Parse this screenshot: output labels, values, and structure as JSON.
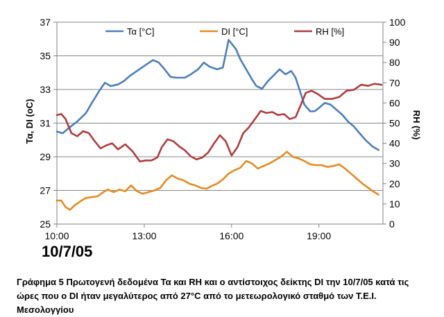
{
  "chart_data": {
    "type": "line",
    "date_label": "10/7/05",
    "left_axis": {
      "label": "Τα, DI (oC)",
      "min": 25,
      "max": 37,
      "ticks": [
        25,
        27,
        29,
        31,
        33,
        35,
        37
      ]
    },
    "right_axis": {
      "label": "RH (%)",
      "min": 0,
      "max": 100,
      "ticks": [
        0,
        10,
        20,
        30,
        40,
        50,
        60,
        70,
        80,
        90,
        100
      ]
    },
    "x_axis": {
      "min": 10.0,
      "max": 21.2,
      "ticks": [
        {
          "value": 10,
          "label": "10:00"
        },
        {
          "value": 13,
          "label": "13:00"
        },
        {
          "value": 16,
          "label": "16:00"
        },
        {
          "value": 19,
          "label": "19:00"
        }
      ]
    },
    "grid": "horizontal",
    "legend": [
      {
        "name": "Τα [°C]",
        "color": "#4a7ebb"
      },
      {
        "name": "DI [°C]",
        "color": "#e58a22"
      },
      {
        "name": "RH [%]",
        "color": "#b03c3c"
      }
    ],
    "series": [
      {
        "name": "Τα [°C]",
        "axis": "left",
        "color": "#4a7ebb",
        "points": [
          [
            10.0,
            30.5
          ],
          [
            10.2,
            30.4
          ],
          [
            10.4,
            30.7
          ],
          [
            10.7,
            31.1
          ],
          [
            11.0,
            31.6
          ],
          [
            11.2,
            32.2
          ],
          [
            11.45,
            32.9
          ],
          [
            11.65,
            33.4
          ],
          [
            11.85,
            33.2
          ],
          [
            12.1,
            33.3
          ],
          [
            12.3,
            33.5
          ],
          [
            12.5,
            33.8
          ],
          [
            12.75,
            34.1
          ],
          [
            13.0,
            34.4
          ],
          [
            13.3,
            34.75
          ],
          [
            13.5,
            34.6
          ],
          [
            13.7,
            34.2
          ],
          [
            13.9,
            33.75
          ],
          [
            14.1,
            33.7
          ],
          [
            14.4,
            33.7
          ],
          [
            14.6,
            33.9
          ],
          [
            14.85,
            34.2
          ],
          [
            15.05,
            34.6
          ],
          [
            15.25,
            34.35
          ],
          [
            15.5,
            34.2
          ],
          [
            15.7,
            34.3
          ],
          [
            15.9,
            35.95
          ],
          [
            16.15,
            35.4
          ],
          [
            16.3,
            34.8
          ],
          [
            16.5,
            34.2
          ],
          [
            16.7,
            33.6
          ],
          [
            16.85,
            33.2
          ],
          [
            17.05,
            33.05
          ],
          [
            17.25,
            33.5
          ],
          [
            17.45,
            33.85
          ],
          [
            17.65,
            34.2
          ],
          [
            17.85,
            33.9
          ],
          [
            18.05,
            34.1
          ],
          [
            18.2,
            33.7
          ],
          [
            18.35,
            32.9
          ],
          [
            18.5,
            32.1
          ],
          [
            18.7,
            31.7
          ],
          [
            18.85,
            31.7
          ],
          [
            19.0,
            31.9
          ],
          [
            19.2,
            32.2
          ],
          [
            19.4,
            32.1
          ],
          [
            19.6,
            31.8
          ],
          [
            19.8,
            31.5
          ],
          [
            20.0,
            31.1
          ],
          [
            20.2,
            30.8
          ],
          [
            20.4,
            30.4
          ],
          [
            20.6,
            30.0
          ],
          [
            20.85,
            29.6
          ],
          [
            21.05,
            29.4
          ]
        ]
      },
      {
        "name": "DI [°C]",
        "axis": "left",
        "color": "#e58a22",
        "points": [
          [
            10.0,
            26.4
          ],
          [
            10.15,
            26.4
          ],
          [
            10.3,
            26.0
          ],
          [
            10.45,
            25.85
          ],
          [
            10.6,
            26.1
          ],
          [
            10.8,
            26.35
          ],
          [
            11.0,
            26.55
          ],
          [
            11.2,
            26.6
          ],
          [
            11.4,
            26.65
          ],
          [
            11.6,
            26.9
          ],
          [
            11.75,
            27.05
          ],
          [
            11.95,
            26.9
          ],
          [
            12.15,
            27.05
          ],
          [
            12.35,
            26.95
          ],
          [
            12.55,
            27.3
          ],
          [
            12.75,
            26.95
          ],
          [
            12.95,
            26.8
          ],
          [
            13.15,
            26.9
          ],
          [
            13.35,
            27.0
          ],
          [
            13.55,
            27.15
          ],
          [
            13.75,
            27.6
          ],
          [
            13.95,
            27.9
          ],
          [
            14.15,
            27.7
          ],
          [
            14.35,
            27.6
          ],
          [
            14.55,
            27.4
          ],
          [
            14.75,
            27.3
          ],
          [
            14.95,
            27.15
          ],
          [
            15.15,
            27.1
          ],
          [
            15.3,
            27.25
          ],
          [
            15.5,
            27.4
          ],
          [
            15.7,
            27.65
          ],
          [
            15.9,
            28.0
          ],
          [
            16.1,
            28.2
          ],
          [
            16.3,
            28.35
          ],
          [
            16.5,
            28.75
          ],
          [
            16.7,
            28.6
          ],
          [
            16.9,
            28.3
          ],
          [
            17.1,
            28.45
          ],
          [
            17.3,
            28.6
          ],
          [
            17.5,
            28.8
          ],
          [
            17.7,
            29.0
          ],
          [
            17.9,
            29.3
          ],
          [
            18.1,
            29.0
          ],
          [
            18.3,
            28.9
          ],
          [
            18.5,
            28.75
          ],
          [
            18.7,
            28.55
          ],
          [
            18.9,
            28.5
          ],
          [
            19.1,
            28.5
          ],
          [
            19.3,
            28.4
          ],
          [
            19.5,
            28.45
          ],
          [
            19.7,
            28.55
          ],
          [
            19.9,
            28.3
          ],
          [
            20.1,
            28.0
          ],
          [
            20.3,
            27.7
          ],
          [
            20.5,
            27.4
          ],
          [
            20.7,
            27.15
          ],
          [
            20.9,
            26.9
          ],
          [
            21.05,
            26.75
          ]
        ]
      },
      {
        "name": "RH [%]",
        "axis": "right",
        "color": "#b03c3c",
        "points": [
          [
            10.0,
            54
          ],
          [
            10.15,
            54.5
          ],
          [
            10.3,
            52
          ],
          [
            10.5,
            45
          ],
          [
            10.7,
            43.5
          ],
          [
            10.9,
            46
          ],
          [
            11.1,
            45
          ],
          [
            11.3,
            41
          ],
          [
            11.5,
            37.5
          ],
          [
            11.7,
            39
          ],
          [
            11.9,
            40
          ],
          [
            12.1,
            37
          ],
          [
            12.35,
            39.5
          ],
          [
            12.6,
            36
          ],
          [
            12.85,
            31
          ],
          [
            13.05,
            31.5
          ],
          [
            13.25,
            31.5
          ],
          [
            13.45,
            33
          ],
          [
            13.6,
            38
          ],
          [
            13.8,
            42
          ],
          [
            14.0,
            41
          ],
          [
            14.2,
            38.5
          ],
          [
            14.4,
            36.5
          ],
          [
            14.6,
            33.5
          ],
          [
            14.8,
            32
          ],
          [
            15.0,
            33
          ],
          [
            15.2,
            35.5
          ],
          [
            15.4,
            40
          ],
          [
            15.6,
            44
          ],
          [
            15.8,
            41
          ],
          [
            16.0,
            34
          ],
          [
            16.2,
            38
          ],
          [
            16.4,
            45
          ],
          [
            16.6,
            48
          ],
          [
            16.8,
            52
          ],
          [
            17.0,
            56
          ],
          [
            17.2,
            55
          ],
          [
            17.4,
            55.5
          ],
          [
            17.6,
            54
          ],
          [
            17.8,
            54.5
          ],
          [
            18.0,
            52
          ],
          [
            18.2,
            53
          ],
          [
            18.35,
            58
          ],
          [
            18.55,
            65
          ],
          [
            18.75,
            66
          ],
          [
            18.95,
            64.5
          ],
          [
            19.2,
            62
          ],
          [
            19.45,
            62
          ],
          [
            19.7,
            63
          ],
          [
            19.95,
            66
          ],
          [
            20.2,
            66.5
          ],
          [
            20.45,
            69
          ],
          [
            20.7,
            68.5
          ],
          [
            20.9,
            69.5
          ],
          [
            21.15,
            69
          ]
        ]
      }
    ]
  },
  "caption_text": "Γράφημα 5 Πρωτογενή δεδομένα Τα και RH και ο αντίστοιχος δείκτης DI την 10/7/05 κατά τις ώρες που ο DI ήταν μεγαλύτερος από 27°C από το μετεωρολογικό σταθμό των Τ.Ε.Ι. Μεσολογγίου"
}
